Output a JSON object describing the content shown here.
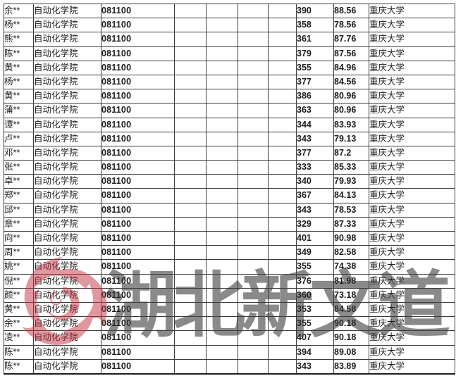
{
  "watermark": {
    "text": "湖北新文道",
    "text_color": "#8a8a8a",
    "logo_color": "#c23240",
    "logo_icon": "phoenix-logo"
  },
  "table": {
    "columns": [
      {
        "key": "name-cell",
        "cls": "c-name"
      },
      {
        "key": "college-cell",
        "cls": "c-college"
      },
      {
        "key": "major-code-cell",
        "cls": "c-code"
      },
      {
        "key": "empty-cell",
        "cls": "c-empty"
      },
      {
        "key": "empty-cell",
        "cls": "c-empty"
      },
      {
        "key": "empty-cell",
        "cls": "c-empty"
      },
      {
        "key": "empty-cell",
        "cls": "c-empty"
      },
      {
        "key": "initial-score-cell",
        "cls": "c-score"
      },
      {
        "key": "weighted-score-cell",
        "cls": "c-score2"
      },
      {
        "key": "university-cell",
        "cls": "c-univ"
      }
    ],
    "rows": [
      [
        "余**",
        "自动化学院",
        "081100",
        "",
        "",
        "",
        "",
        "390",
        "88.56",
        "重庆大学"
      ],
      [
        "杨**",
        "自动化学院",
        "081100",
        "",
        "",
        "",
        "",
        "358",
        "78.56",
        "重庆大学"
      ],
      [
        "熊**",
        "自动化学院",
        "081100",
        "",
        "",
        "",
        "",
        "361",
        "87.76",
        "重庆大学"
      ],
      [
        "陈**",
        "自动化学院",
        "081100",
        "",
        "",
        "",
        "",
        "379",
        "87.56",
        "重庆大学"
      ],
      [
        "黄**",
        "自动化学院",
        "081100",
        "",
        "",
        "",
        "",
        "355",
        "84.96",
        "重庆大学"
      ],
      [
        "杨**",
        "自动化学院",
        "081100",
        "",
        "",
        "",
        "",
        "377",
        "84.56",
        "重庆大学"
      ],
      [
        "黄**",
        "自动化学院",
        "081100",
        "",
        "",
        "",
        "",
        "386",
        "80.96",
        "重庆大学"
      ],
      [
        "蒲**",
        "自动化学院",
        "081100",
        "",
        "",
        "",
        "",
        "363",
        "80.96",
        "重庆大学"
      ],
      [
        "谭**",
        "自动化学院",
        "081100",
        "",
        "",
        "",
        "",
        "344",
        "83.93",
        "重庆大学"
      ],
      [
        "卢**",
        "自动化学院",
        "081100",
        "",
        "",
        "",
        "",
        "343",
        "79.13",
        "重庆大学"
      ],
      [
        "邓**",
        "自动化学院",
        "081100",
        "",
        "",
        "",
        "",
        "377",
        "87.2",
        "重庆大学"
      ],
      [
        "张**",
        "自动化学院",
        "081100",
        "",
        "",
        "",
        "",
        "333",
        "85.33",
        "重庆大学"
      ],
      [
        "卓**",
        "自动化学院",
        "081100",
        "",
        "",
        "",
        "",
        "340",
        "79.93",
        "重庆大学"
      ],
      [
        "郑**",
        "自动化学院",
        "081100",
        "",
        "",
        "",
        "",
        "367",
        "84.13",
        "重庆大学"
      ],
      [
        "邱**",
        "自动化学院",
        "081100",
        "",
        "",
        "",
        "",
        "343",
        "78.53",
        "重庆大学"
      ],
      [
        "章**",
        "自动化学院",
        "081100",
        "",
        "",
        "",
        "",
        "329",
        "87.33",
        "重庆大学"
      ],
      [
        "向**",
        "自动化学院",
        "081100",
        "",
        "",
        "",
        "",
        "401",
        "90.98",
        "重庆大学"
      ],
      [
        "周**",
        "自动化学院",
        "081100",
        "",
        "",
        "",
        "",
        "349",
        "82.58",
        "重庆大学"
      ],
      [
        "姚**",
        "自动化学院",
        "081100",
        "",
        "",
        "",
        "",
        "355",
        "74.38",
        "重庆大学"
      ],
      [
        "倪**",
        "自动化学院",
        "081100",
        "",
        "",
        "",
        "",
        "376",
        "81.98",
        "重庆大学"
      ],
      [
        "颜**",
        "自动化学院",
        "081100",
        "",
        "",
        "",
        "",
        "360",
        "73.18",
        "重庆大学"
      ],
      [
        "黄**",
        "自动化学院",
        "081100",
        "",
        "",
        "",
        "",
        "353",
        "84.58",
        "重庆大学"
      ],
      [
        "余**",
        "自动化学院",
        "081100",
        "",
        "",
        "",
        "",
        "355",
        "90.18",
        "重庆大学"
      ],
      [
        "凌**",
        "自动化学院",
        "081100",
        "",
        "",
        "",
        "",
        "407",
        "90.18",
        "重庆大学"
      ],
      [
        "陈**",
        "自动化学院",
        "081100",
        "",
        "",
        "",
        "",
        "394",
        "89.08",
        "重庆大学"
      ],
      [
        "陈**",
        "自动化学院",
        "081100",
        "",
        "",
        "",
        "",
        "343",
        "83.89",
        "重庆大学"
      ]
    ]
  }
}
